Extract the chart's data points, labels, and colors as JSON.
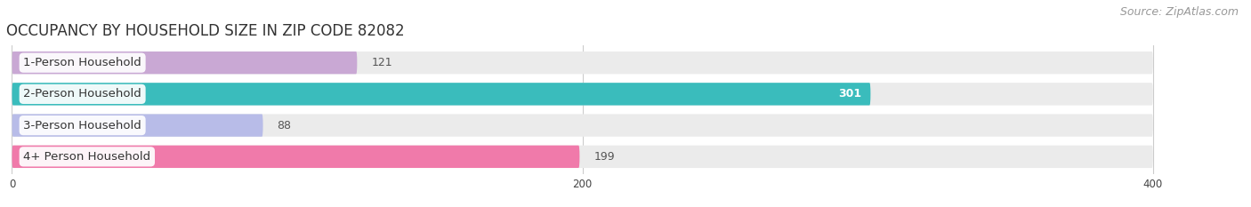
{
  "title": "OCCUPANCY BY HOUSEHOLD SIZE IN ZIP CODE 82082",
  "source": "Source: ZipAtlas.com",
  "categories": [
    "1-Person Household",
    "2-Person Household",
    "3-Person Household",
    "4+ Person Household"
  ],
  "values": [
    121,
    301,
    88,
    199
  ],
  "bar_colors": [
    "#c9a8d4",
    "#3abcbc",
    "#b8bce8",
    "#f07aaa"
  ],
  "bar_bg_color": "#ebebeb",
  "xlim": [
    -2,
    430
  ],
  "xticks": [
    0,
    200,
    400
  ],
  "background_color": "#ffffff",
  "title_fontsize": 12,
  "source_fontsize": 9,
  "label_fontsize": 9.5,
  "value_fontsize": 9
}
